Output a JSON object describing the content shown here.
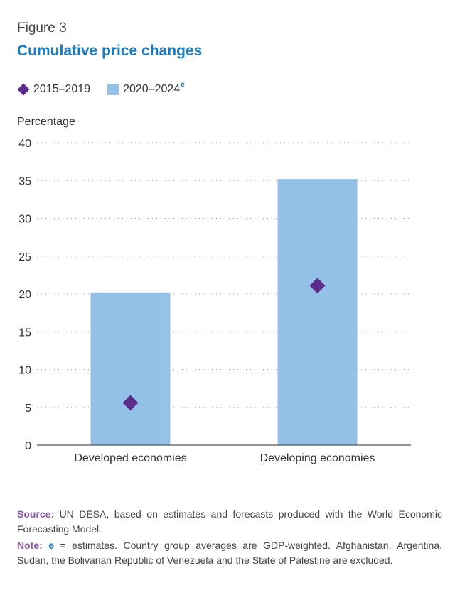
{
  "figure": {
    "label": "Figure 3",
    "title": "Cumulative price changes"
  },
  "legend": {
    "item1": "2015–2019",
    "item2": "2020–2024",
    "item2_sup": "e"
  },
  "colors": {
    "bar": "#94c1e8",
    "diamond": "#5b2c8c",
    "title": "#1a7cc1",
    "note_label": "#8a5aa5"
  },
  "chart_data": {
    "type": "bar",
    "categories": [
      "Developed economies",
      "Developing economies"
    ],
    "series": [
      {
        "name": "2020–2024e",
        "kind": "bar",
        "values": [
          20.2,
          35.2
        ]
      },
      {
        "name": "2015–2019",
        "kind": "marker-diamond",
        "values": [
          5.6,
          21.1
        ]
      }
    ],
    "ylabel": "Percentage",
    "ylim": [
      0,
      40
    ],
    "yticks": [
      0,
      5,
      10,
      15,
      20,
      25,
      30,
      35,
      40
    ],
    "grid": true,
    "legend_position": "top-left"
  },
  "footer": {
    "source_label": "Source:",
    "source_text": " UN DESA, based on estimates and forecasts produced with the World Economic Forecasting Model.",
    "note_label": "Note:",
    "note_e": "e",
    "note_text": " = estimates. Country group averages are GDP-weighted. Afghanistan, Argentina, Sudan, the Bolivarian Republic of Venezuela and the State of Palestine are excluded."
  }
}
